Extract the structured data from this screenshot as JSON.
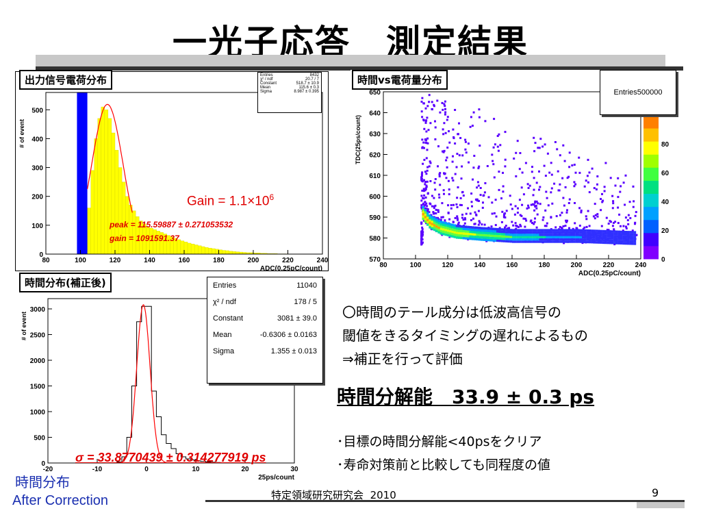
{
  "slide": {
    "title": "一光子応答　測定結果",
    "footer_conference": "特定領域研究研究会",
    "footer_year": "2010",
    "page_number": "9"
  },
  "panel1": {
    "label": "出力信号電荷分布",
    "ylabel": "# of event",
    "xlabel": "ADC(0.25pC/count)",
    "stats": [
      {
        "name": "Entries",
        "value": "8432"
      },
      {
        "name": "χ² / ndf",
        "value": "20.7 / 7"
      },
      {
        "name": "Constant",
        "value": "518.7 ± 10.9"
      },
      {
        "name": "Mean",
        "value": "115.6 ± 0.3"
      },
      {
        "name": "Sigma",
        "value": "8.987 ± 0.395"
      }
    ],
    "gain_label": "Gain = 1.1×10",
    "gain_exp": "6",
    "peak_text": "peak = 115.59887 ± 0.271053532",
    "gain_text": "gain = 1091591.37"
  },
  "panel2": {
    "label": "時間vs電荷量分布",
    "ylabel": "TDC(25ps/count)",
    "xlabel": "ADC(0.25pC/count)",
    "entries_label": "Entries",
    "entries_value": "500000"
  },
  "panel3": {
    "label": "時間分布(補正後)",
    "ylabel": "# of event",
    "xlabel": "25ps/count",
    "stats": [
      {
        "name": "Entries",
        "value": "11040"
      },
      {
        "name": "χ² / ndf",
        "value": "178 / 5"
      },
      {
        "name": "Constant",
        "value": "3081 ± 39.0"
      },
      {
        "name": "Mean",
        "value": "-0.6306 ± 0.0163"
      },
      {
        "name": "Sigma",
        "value": "1.355 ± 0.013"
      }
    ],
    "sigma_text": "σ = 33.8770439 ± 0.314277919 ps"
  },
  "caption": {
    "line1": "時間分布",
    "line2": "After Correction"
  },
  "notes": {
    "line1": "〇時間のテール成分は低波高信号の",
    "line2": "閾値をきるタイミングの遅れによるもの",
    "line3": "⇒補正を行って評価",
    "result": "時間分解能　33.9 ± 0.3 ps",
    "bullet1": "･目標の時間分解能<40psをクリア",
    "bullet2": "･寿命対策前と比較しても同程度の値"
  },
  "colors": {
    "histogram_fill": "#ffff00",
    "pedestal": "#0000ff",
    "fit": "#ff0000",
    "annotation_red": "#e00000"
  },
  "chart_data": [
    {
      "type": "bar",
      "id": "charge_distribution",
      "xlabel": "ADC(0.25pC/count)",
      "ylabel": "# of event",
      "xlim": [
        80,
        240
      ],
      "ylim": [
        0,
        560
      ],
      "xticks": [
        80,
        100,
        120,
        140,
        160,
        180,
        200,
        220,
        240
      ],
      "yticks": [
        0,
        100,
        200,
        300,
        400,
        500
      ],
      "bin_width": 2,
      "bins_start": 100,
      "values": [
        30,
        70,
        160,
        290,
        400,
        470,
        510,
        500,
        470,
        420,
        360,
        300,
        250,
        200,
        170,
        150,
        130,
        115,
        105,
        95,
        90,
        85,
        80,
        75,
        70,
        65,
        60,
        55,
        50,
        46,
        42,
        38,
        35,
        32,
        29,
        26,
        23,
        21,
        19,
        17,
        15,
        13,
        12,
        10,
        9,
        8,
        7,
        6,
        5,
        5,
        4,
        4,
        3,
        3,
        2,
        2,
        2,
        1,
        1,
        1
      ],
      "pedestal": {
        "x0": 98,
        "x1": 104,
        "value": 560
      },
      "fit": {
        "constant": 518.7,
        "mean": 115.6,
        "sigma": 8.987,
        "range": [
          104,
          130
        ]
      }
    },
    {
      "type": "heatmap",
      "id": "time_vs_charge",
      "xlabel": "ADC(0.25pC/count)",
      "ylabel": "TDC(25ps/count)",
      "xlim": [
        80,
        240
      ],
      "ylim": [
        570,
        650
      ],
      "xticks": [
        80,
        100,
        120,
        140,
        160,
        180,
        200,
        220,
        240
      ],
      "yticks": [
        570,
        580,
        590,
        600,
        610,
        620,
        630,
        640,
        650
      ],
      "zticks": [
        0,
        20,
        40,
        60,
        80
      ],
      "band": [
        {
          "x": 104,
          "y": 592
        },
        {
          "x": 108,
          "y": 588
        },
        {
          "x": 115,
          "y": 585
        },
        {
          "x": 125,
          "y": 583
        },
        {
          "x": 140,
          "y": 582
        },
        {
          "x": 160,
          "y": 581
        },
        {
          "x": 200,
          "y": 581
        },
        {
          "x": 235,
          "y": 580
        }
      ]
    },
    {
      "type": "bar",
      "id": "time_distribution",
      "xlabel": "25ps/count",
      "ylabel": "# of event",
      "xlim": [
        -20,
        30
      ],
      "ylim": [
        0,
        3200
      ],
      "xticks": [
        -20,
        -10,
        0,
        10,
        20,
        30
      ],
      "yticks": [
        0,
        500,
        1000,
        1500,
        2000,
        2500,
        3000
      ],
      "bin_width": 1,
      "bins_start": -6,
      "values": [
        20,
        120,
        500,
        1500,
        2750,
        3050,
        3050,
        1400,
        900,
        550,
        380,
        280,
        180,
        120,
        80,
        60,
        40,
        30,
        20,
        15,
        10,
        5
      ],
      "fit": {
        "constant": 3081,
        "mean": -0.6306,
        "sigma": 1.355,
        "range": [
          -6,
          5
        ]
      }
    }
  ]
}
